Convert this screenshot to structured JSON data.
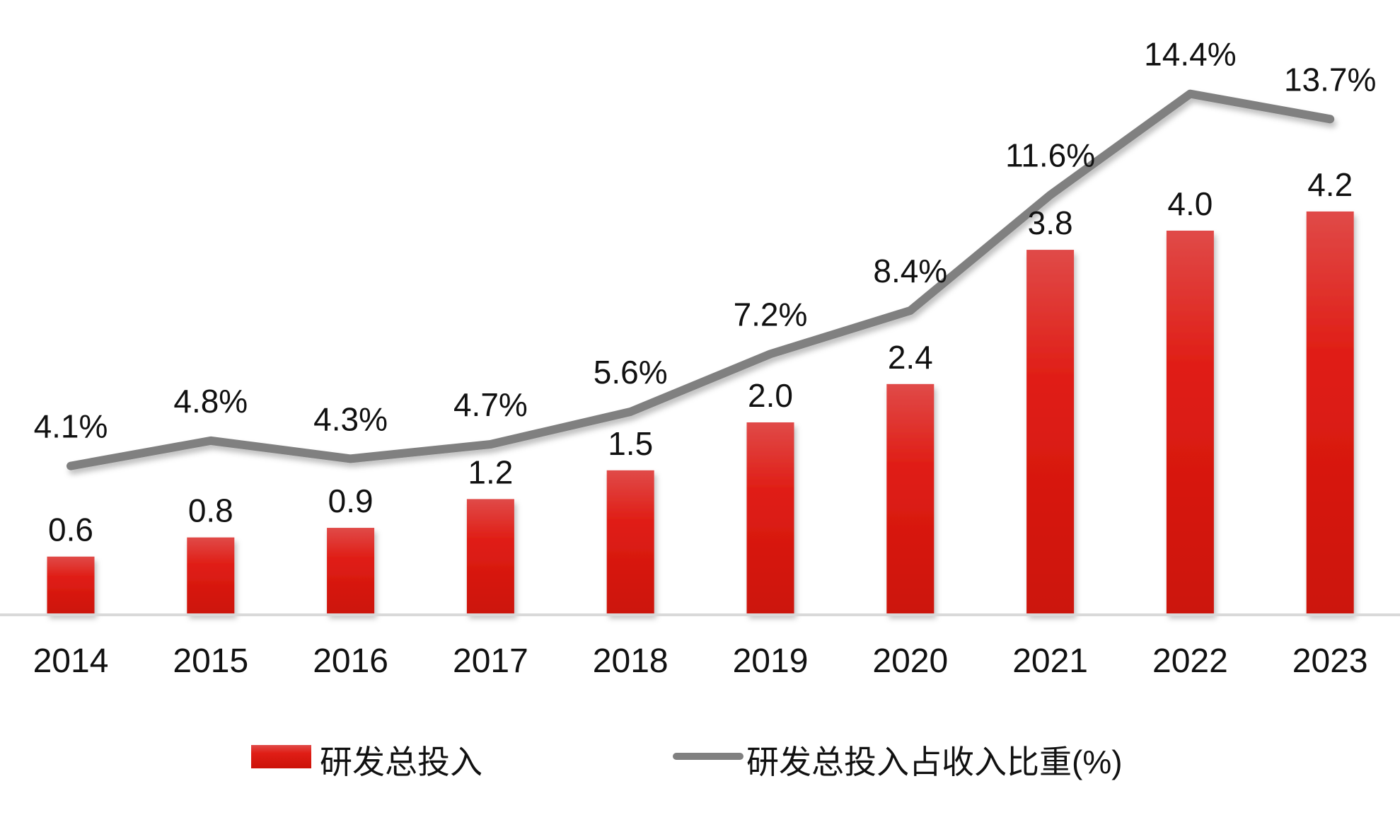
{
  "chart_data": {
    "type": "bar+line",
    "categories": [
      "2014",
      "2015",
      "2016",
      "2017",
      "2018",
      "2019",
      "2020",
      "2021",
      "2022",
      "2023"
    ],
    "series": [
      {
        "name": "研发总投入",
        "type": "bar",
        "axis": "left",
        "color": "#d9140e",
        "values": [
          0.6,
          0.8,
          0.9,
          1.2,
          1.5,
          2.0,
          2.4,
          3.8,
          4.0,
          4.2
        ],
        "labels": [
          "0.6",
          "0.8",
          "0.9",
          "1.2",
          "1.5",
          "2.0",
          "2.4",
          "3.8",
          "4.0",
          "4.2"
        ]
      },
      {
        "name": "研发总投入占收入比重(%)",
        "type": "line",
        "axis": "right",
        "color": "#808080",
        "values": [
          4.1,
          4.8,
          4.3,
          4.7,
          5.6,
          7.2,
          8.4,
          11.6,
          14.4,
          13.7
        ],
        "labels": [
          "4.1%",
          "4.8%",
          "4.3%",
          "4.7%",
          "5.6%",
          "7.2%",
          "8.4%",
          "11.6%",
          "14.4%",
          "13.7%"
        ]
      }
    ],
    "legend_position": "bottom",
    "grid": false,
    "y_axis_visible": false
  }
}
